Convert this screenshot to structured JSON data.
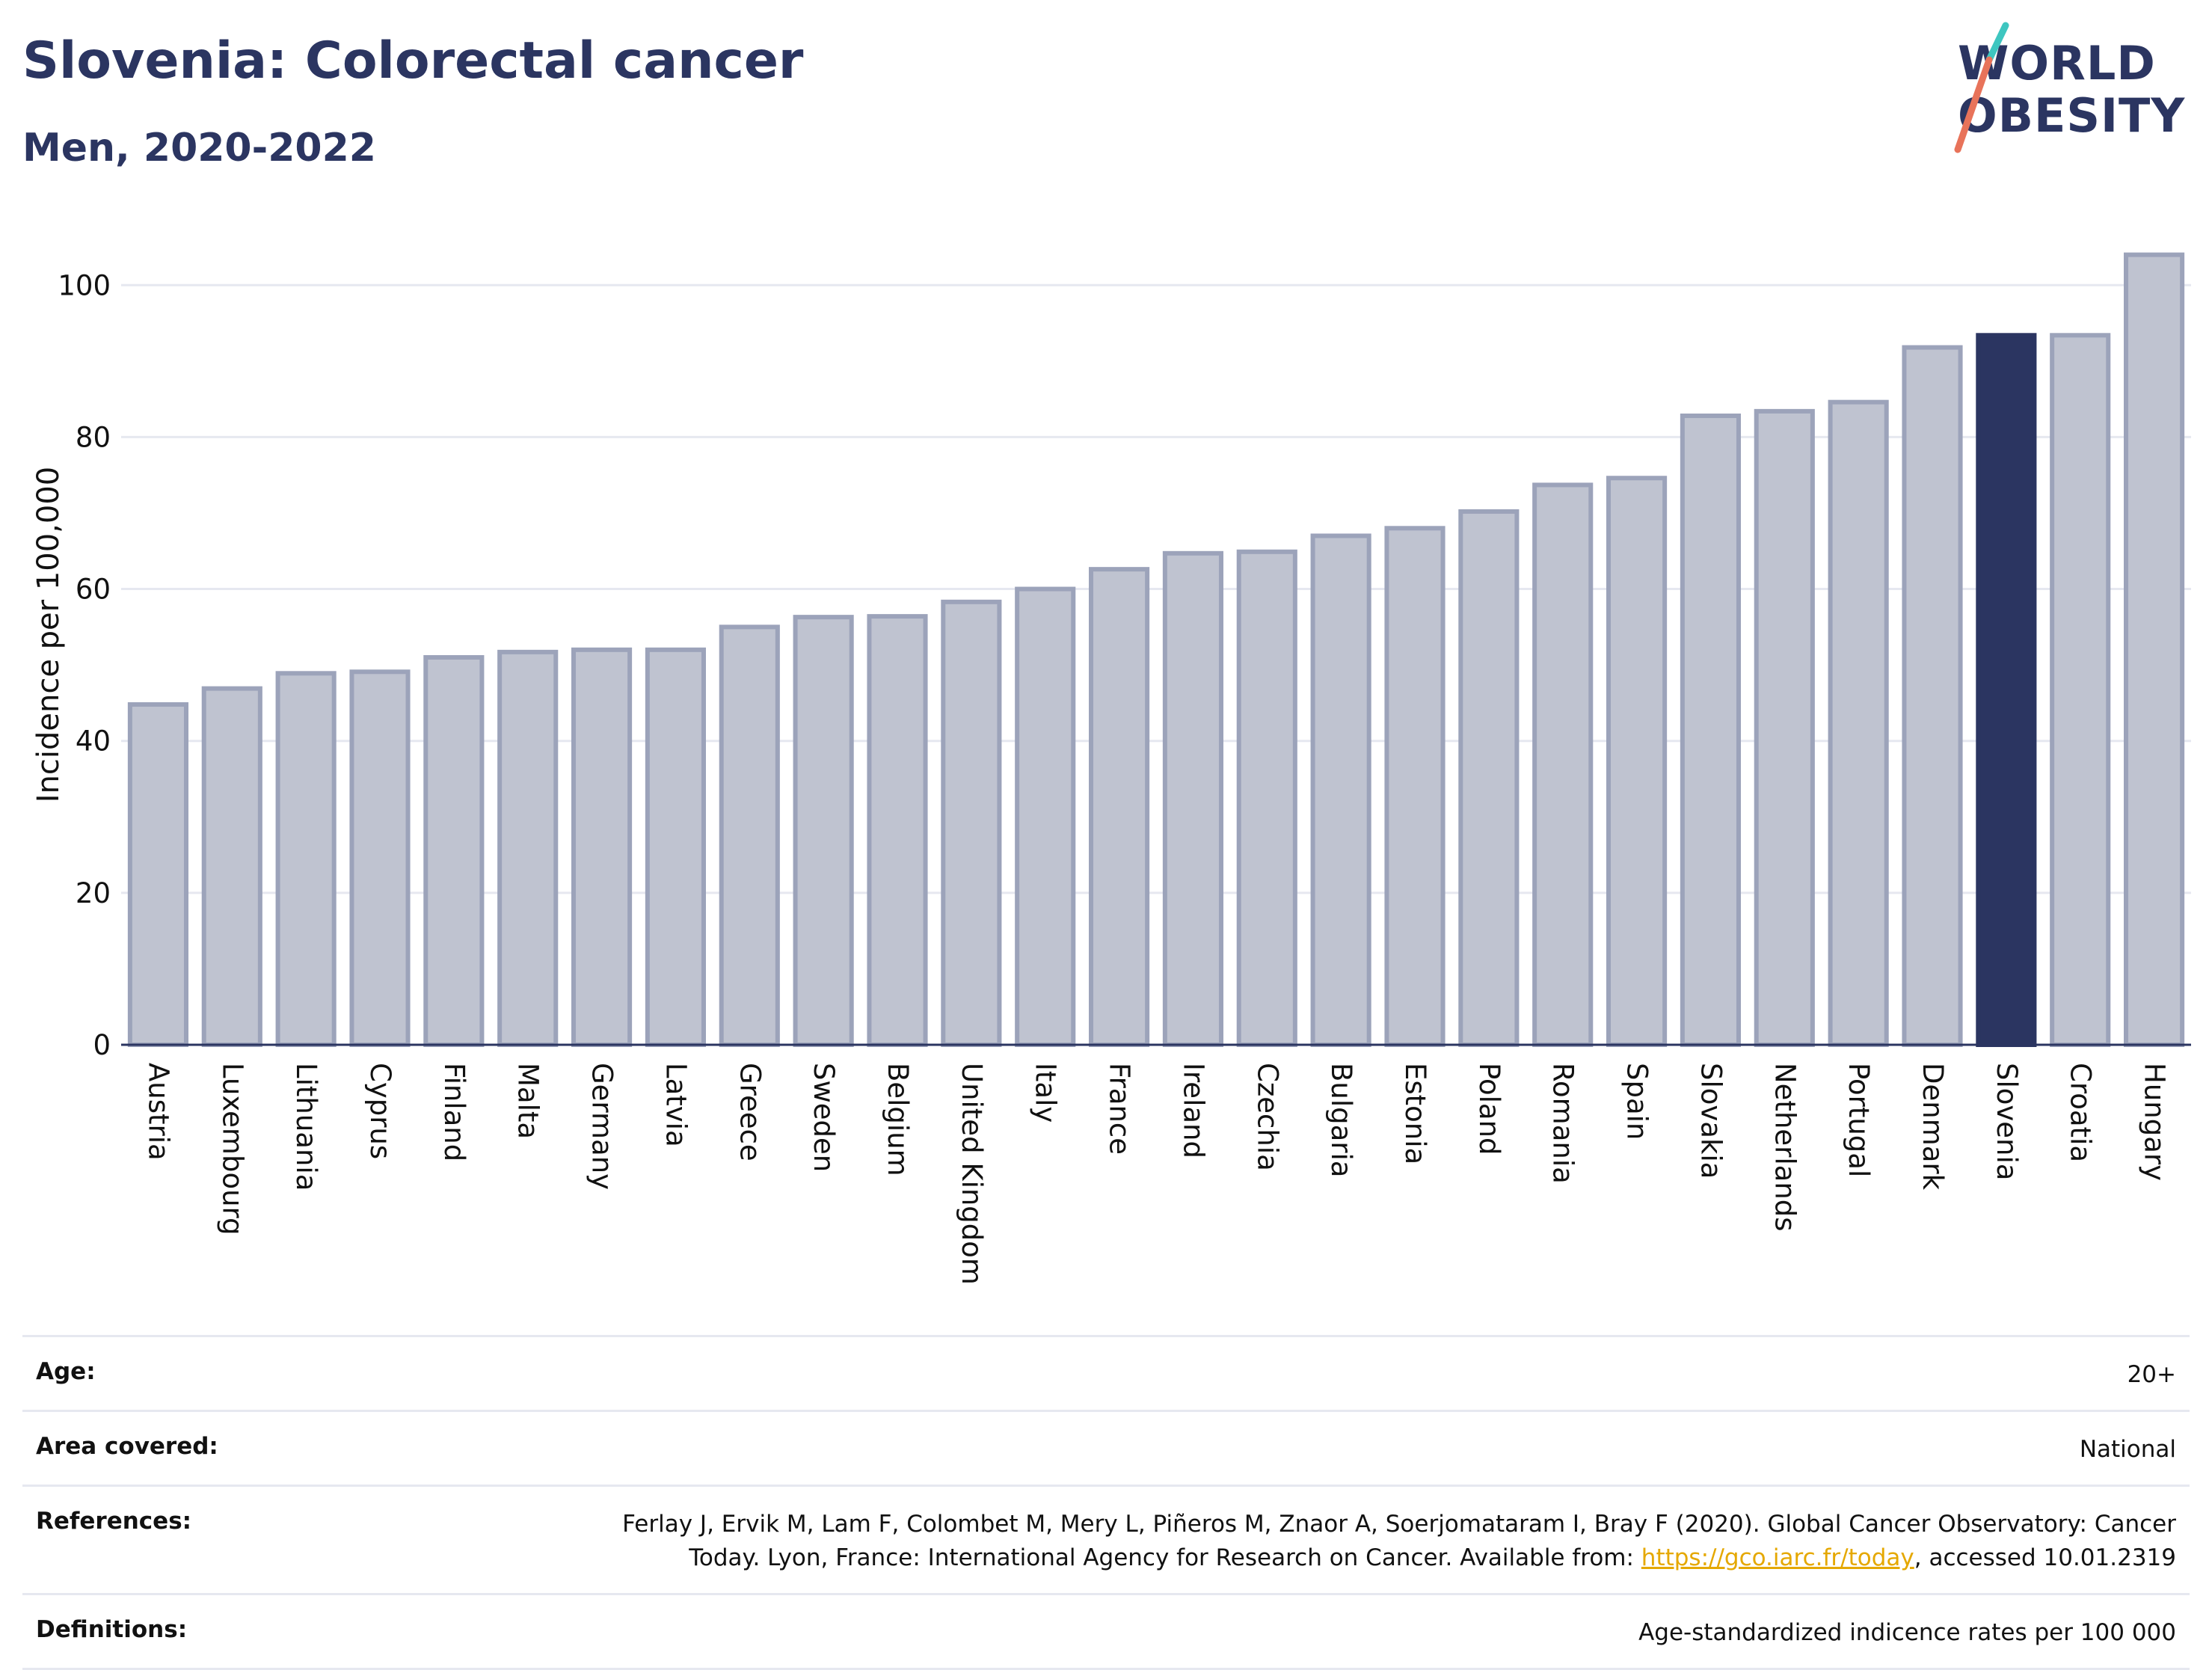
{
  "header": {
    "title": "Slovenia: Colorectal cancer",
    "subtitle": "Men, 2020-2022"
  },
  "logo": {
    "line1": "WORLD",
    "line2": "OBESITY",
    "accent_colors": [
      "#3ec6c0",
      "#e8735a"
    ]
  },
  "colors": {
    "highlight": "#2b3561",
    "bar_fill": "#bfc3d0",
    "bar_edge": "#9ca3ba",
    "grid": "#e6e8f0",
    "text_dark": "#2b3561",
    "link": "#e5a800"
  },
  "chart_data": {
    "type": "bar",
    "title": "Slovenia: Colorectal cancer",
    "subtitle": "Men, 2020-2022",
    "xlabel": "",
    "ylabel": "Incidence per 100,000",
    "ylim": [
      0,
      108
    ],
    "yticks": [
      0,
      20,
      40,
      60,
      80,
      100
    ],
    "grid": true,
    "highlight": "Slovenia",
    "categories": [
      "Austria",
      "Luxembourg",
      "Lithuania",
      "Cyprus",
      "Finland",
      "Malta",
      "Germany",
      "Latvia",
      "Greece",
      "Sweden",
      "Belgium",
      "United Kingdom",
      "Italy",
      "France",
      "Ireland",
      "Czechia",
      "Bulgaria",
      "Estonia",
      "Poland",
      "Romania",
      "Spain",
      "Slovakia",
      "Netherlands",
      "Portugal",
      "Denmark",
      "Slovenia",
      "Croatia",
      "Hungary"
    ],
    "values": [
      44.8,
      46.9,
      48.9,
      49.1,
      51.0,
      51.7,
      52.0,
      52.0,
      55.0,
      56.3,
      56.4,
      58.3,
      60.0,
      62.6,
      64.7,
      64.9,
      67.0,
      68.0,
      70.2,
      73.7,
      74.6,
      82.8,
      83.4,
      84.6,
      91.8,
      93.4,
      93.4,
      104.0
    ]
  },
  "meta": {
    "age": {
      "label": "Age:",
      "value": "20+"
    },
    "area": {
      "label": "Area covered:",
      "value": "National"
    },
    "references": {
      "label": "References:",
      "text_before": "Ferlay J, Ervik M, Lam F, Colombet M, Mery L, Piñeros M, Znaor A, Soerjomataram I, Bray F (2020). Global Cancer Observatory: Cancer Today. Lyon, France: International Agency for Research on Cancer. Available from: ",
      "link": "https://gco.iarc.fr/today",
      "text_after": ", accessed 10.01.2319"
    },
    "definitions": {
      "label": "Definitions:",
      "value": "Age-standardized indicence rates per 100 000"
    }
  }
}
